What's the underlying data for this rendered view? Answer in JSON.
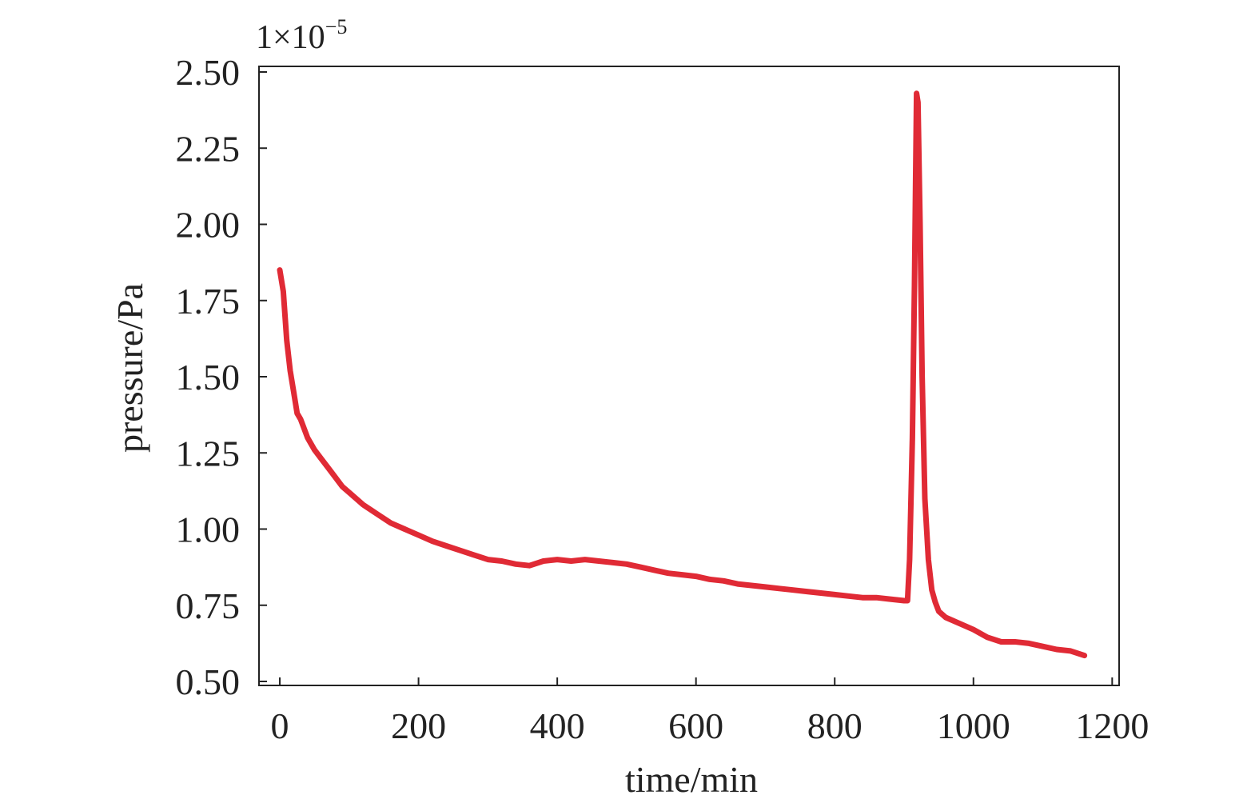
{
  "chart_data": {
    "type": "line",
    "title": "",
    "xlabel": "time/min",
    "ylabel": "pressure/Pa",
    "y_multiplier_text": "1×10",
    "y_multiplier_exponent": "−5",
    "xlim": [
      -30,
      1210
    ],
    "ylim": [
      0.5,
      2.5
    ],
    "x_ticks": [
      0,
      200,
      400,
      600,
      800,
      1000,
      1200
    ],
    "x_tick_labels": [
      "0",
      "200",
      "400",
      "600",
      "800",
      "1000",
      "1200"
    ],
    "y_ticks": [
      0.5,
      0.75,
      1.0,
      1.25,
      1.5,
      1.75,
      2.0,
      2.25,
      2.5
    ],
    "y_tick_labels": [
      "0.50",
      "0.75",
      "1.00",
      "1.25",
      "1.50",
      "1.75",
      "2.00",
      "2.25",
      "2.50"
    ],
    "grid": false,
    "legend": "none",
    "series": [
      {
        "color": "#e02a35",
        "x": [
          0,
          5,
          10,
          15,
          20,
          25,
          30,
          40,
          50,
          60,
          70,
          80,
          90,
          100,
          120,
          140,
          160,
          180,
          200,
          220,
          240,
          260,
          280,
          300,
          320,
          340,
          360,
          380,
          400,
          420,
          440,
          460,
          480,
          500,
          520,
          540,
          560,
          580,
          600,
          620,
          640,
          660,
          680,
          700,
          720,
          740,
          760,
          780,
          800,
          820,
          840,
          860,
          880,
          900,
          905,
          908,
          912,
          915,
          918,
          920,
          923,
          926,
          930,
          935,
          940,
          945,
          950,
          960,
          980,
          1000,
          1020,
          1040,
          1060,
          1080,
          1100,
          1120,
          1140,
          1160
        ],
        "y": [
          1.85,
          1.78,
          1.62,
          1.52,
          1.45,
          1.38,
          1.36,
          1.3,
          1.26,
          1.23,
          1.2,
          1.17,
          1.14,
          1.12,
          1.08,
          1.05,
          1.02,
          1.0,
          0.98,
          0.96,
          0.945,
          0.93,
          0.915,
          0.9,
          0.895,
          0.885,
          0.88,
          0.895,
          0.9,
          0.895,
          0.9,
          0.895,
          0.89,
          0.885,
          0.875,
          0.865,
          0.855,
          0.85,
          0.845,
          0.835,
          0.83,
          0.82,
          0.815,
          0.81,
          0.805,
          0.8,
          0.795,
          0.79,
          0.785,
          0.78,
          0.775,
          0.775,
          0.77,
          0.765,
          0.765,
          0.9,
          1.3,
          1.8,
          2.43,
          2.4,
          2.0,
          1.5,
          1.1,
          0.9,
          0.8,
          0.76,
          0.73,
          0.71,
          0.69,
          0.67,
          0.645,
          0.63,
          0.63,
          0.625,
          0.615,
          0.605,
          0.6,
          0.585
        ]
      }
    ]
  }
}
